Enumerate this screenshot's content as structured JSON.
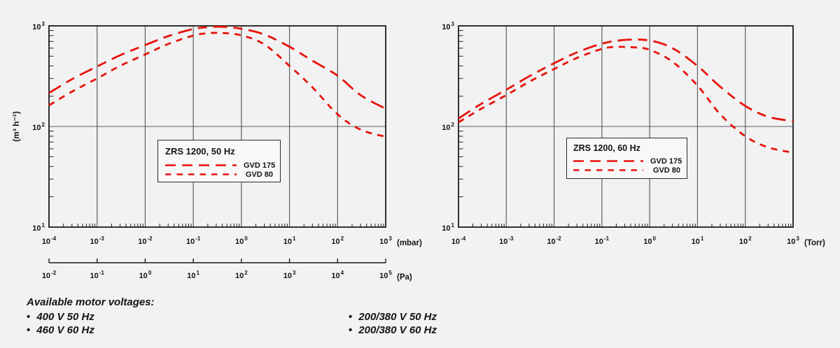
{
  "page": {
    "background": "#f2f2f2",
    "text_color": "#141414"
  },
  "chart_data": [
    {
      "type": "line",
      "title": "ZRS 1200, 50 Hz",
      "ylabel": "(m³ h⁻¹)",
      "xlabel": "(mbar)",
      "x2label": "(Pa)",
      "x_scale": "log",
      "y_scale": "log",
      "x_tick_exponents": [
        -4,
        -3,
        -2,
        -1,
        0,
        1,
        2,
        3
      ],
      "y_tick_exponents": [
        3,
        2,
        1
      ],
      "x2_tick_exponents": [
        -2,
        -1,
        0,
        1,
        2,
        3,
        4,
        5
      ],
      "grid": "vertical-decade-lines, horizontal-line-at-100, log-minor-ticks",
      "legend_position": "inside-bottom-center",
      "curve_color": "#e8130b",
      "series": [
        {
          "name": "GVD 175",
          "dash": "long",
          "points": [
            [
              0.0001,
              215
            ],
            [
              0.0003,
              295
            ],
            [
              0.001,
              395
            ],
            [
              0.003,
              510
            ],
            [
              0.01,
              645
            ],
            [
              0.03,
              790
            ],
            [
              0.1,
              930
            ],
            [
              0.2,
              970
            ],
            [
              0.4,
              980
            ],
            [
              1,
              935
            ],
            [
              3,
              820
            ],
            [
              10,
              620
            ],
            [
              30,
              450
            ],
            [
              100,
              320
            ],
            [
              300,
              205
            ],
            [
              1000,
              150
            ]
          ]
        },
        {
          "name": "GVD 80",
          "dash": "short",
          "points": [
            [
              0.0001,
              162
            ],
            [
              0.0003,
              222
            ],
            [
              0.001,
              300
            ],
            [
              0.003,
              400
            ],
            [
              0.01,
              520
            ],
            [
              0.03,
              660
            ],
            [
              0.1,
              800
            ],
            [
              0.2,
              845
            ],
            [
              0.4,
              850
            ],
            [
              1,
              805
            ],
            [
              3,
              655
            ],
            [
              10,
              400
            ],
            [
              30,
              245
            ],
            [
              100,
              132
            ],
            [
              300,
              93
            ],
            [
              1000,
              79
            ]
          ]
        }
      ]
    },
    {
      "type": "line",
      "title": "ZRS 1200, 60 Hz",
      "ylabel": "",
      "xlabel": "(Torr)",
      "x_scale": "log",
      "y_scale": "log",
      "x_tick_exponents": [
        -4,
        -3,
        -2,
        -1,
        0,
        1,
        2,
        3
      ],
      "y_tick_exponents": [
        3,
        2,
        1
      ],
      "grid": "vertical-decade-lines, horizontal-line-at-100, log-minor-ticks",
      "legend_position": "inside-bottom-center",
      "curve_color": "#e8130b",
      "series": [
        {
          "name": "GVD 175",
          "dash": "long",
          "points": [
            [
              0.0001,
              120
            ],
            [
              0.0003,
              168
            ],
            [
              0.001,
              232
            ],
            [
              0.003,
              315
            ],
            [
              0.01,
              425
            ],
            [
              0.03,
              545
            ],
            [
              0.1,
              665
            ],
            [
              0.3,
              725
            ],
            [
              1,
              715
            ],
            [
              3,
              600
            ],
            [
              10,
              400
            ],
            [
              30,
              248
            ],
            [
              100,
              160
            ],
            [
              300,
              125
            ],
            [
              1000,
              113
            ]
          ]
        },
        {
          "name": "GVD 80",
          "dash": "short",
          "points": [
            [
              0.0001,
              110
            ],
            [
              0.0003,
              150
            ],
            [
              0.001,
              205
            ],
            [
              0.003,
              278
            ],
            [
              0.01,
              372
            ],
            [
              0.03,
              480
            ],
            [
              0.1,
              590
            ],
            [
              0.2,
              618
            ],
            [
              0.5,
              610
            ],
            [
              1,
              578
            ],
            [
              3,
              440
            ],
            [
              10,
              255
            ],
            [
              30,
              132
            ],
            [
              100,
              80
            ],
            [
              300,
              62
            ],
            [
              1000,
              55
            ]
          ]
        }
      ]
    }
  ],
  "footnote": {
    "title": "Available motor voltages:",
    "columns": [
      {
        "items": [
          "400 V 50 Hz",
          "460 V 60 Hz"
        ]
      },
      {
        "items": [
          "200/380 V 50 Hz",
          "200/380 V 60 Hz"
        ]
      }
    ]
  }
}
